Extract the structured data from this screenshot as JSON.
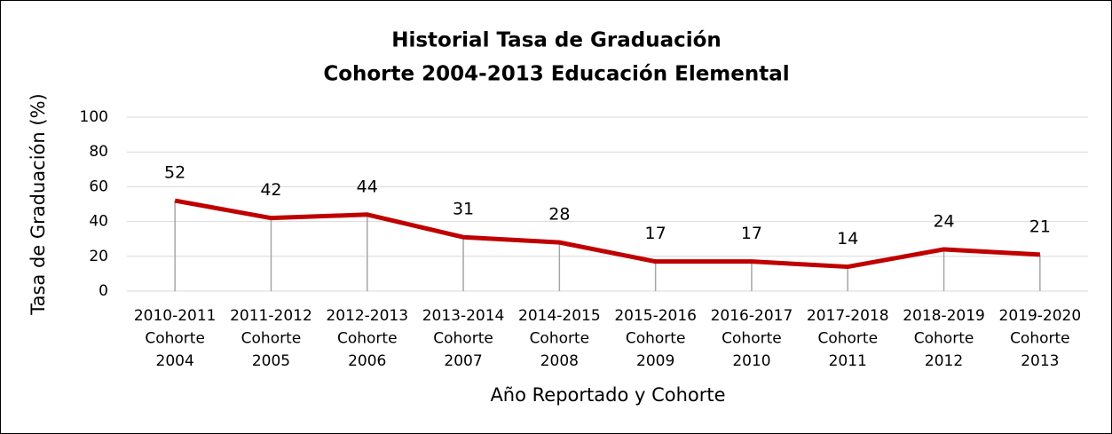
{
  "chart_data": {
    "type": "line",
    "title": [
      "Historial Tasa de Graduación",
      "Cohorte 2004-2013 Educación Elemental"
    ],
    "x_label": "Año Reportado y Cohorte",
    "y_label": "Tasa de Graduación (%)",
    "categories": [
      [
        "2010-2011",
        "Cohorte",
        "2004"
      ],
      [
        "2011-2012",
        "Cohorte",
        "2005"
      ],
      [
        "2012-2013",
        "Cohorte",
        "2006"
      ],
      [
        "2013-2014",
        "Cohorte",
        "2007"
      ],
      [
        "2014-2015",
        "Cohorte",
        "2008"
      ],
      [
        "2015-2016",
        "Cohorte",
        "2009"
      ],
      [
        "2016-2017",
        "Cohorte",
        "2010"
      ],
      [
        "2017-2018",
        "Cohorte",
        "2011"
      ],
      [
        "2018-2019",
        "Cohorte",
        "2012"
      ],
      [
        "2019-2020",
        "Cohorte",
        "2013"
      ]
    ],
    "values": [
      52,
      42,
      44,
      31,
      28,
      17,
      17,
      14,
      24,
      21
    ],
    "color": "#c00000",
    "ylim": [
      0,
      100
    ],
    "yticks": [
      0,
      20,
      40,
      60,
      80,
      100
    ],
    "grid": true,
    "drop_lines": true
  }
}
